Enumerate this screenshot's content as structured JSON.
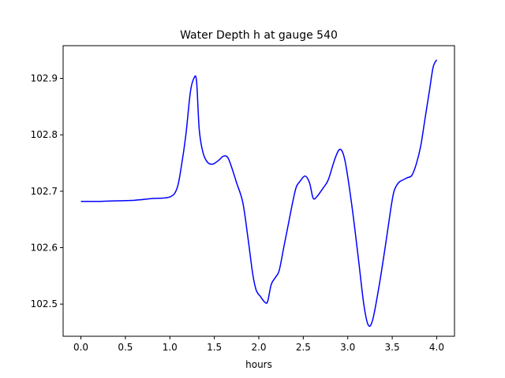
{
  "chart_data": {
    "type": "line",
    "title": "Water Depth h at gauge 540",
    "xlabel": "hours",
    "ylabel": "",
    "xlim": [
      -0.2,
      4.2
    ],
    "ylim": [
      102.443,
      102.958
    ],
    "grid": false,
    "xticks": [
      0.0,
      0.5,
      1.0,
      1.5,
      2.0,
      2.5,
      3.0,
      3.5,
      4.0
    ],
    "xtick_labels": [
      "0.0",
      "0.5",
      "1.0",
      "1.5",
      "2.0",
      "2.5",
      "3.0",
      "3.5",
      "4.0"
    ],
    "yticks": [
      102.5,
      102.6,
      102.7,
      102.8,
      102.9
    ],
    "ytick_labels": [
      "102.5",
      "102.6",
      "102.7",
      "102.8",
      "102.9"
    ],
    "colors": {
      "line": "#0000ff",
      "axes": "#000000",
      "background": "#ffffff"
    },
    "series": [
      {
        "name": "h",
        "x": [
          0.0,
          0.2,
          0.4,
          0.6,
          0.8,
          1.0,
          1.08,
          1.13,
          1.18,
          1.23,
          1.27,
          1.3,
          1.33,
          1.37,
          1.42,
          1.48,
          1.55,
          1.6,
          1.65,
          1.7,
          1.75,
          1.82,
          1.88,
          1.93,
          1.97,
          2.02,
          2.07,
          2.1,
          2.14,
          2.19,
          2.23,
          2.28,
          2.33,
          2.38,
          2.42,
          2.46,
          2.52,
          2.57,
          2.61,
          2.65,
          2.72,
          2.78,
          2.85,
          2.9,
          2.94,
          2.98,
          3.05,
          3.12,
          3.18,
          3.23,
          3.28,
          3.35,
          3.42,
          3.48,
          3.52,
          3.57,
          3.62,
          3.67,
          3.72,
          3.77,
          3.82,
          3.87,
          3.92,
          3.96,
          4.0
        ],
        "y": [
          102.682,
          102.682,
          102.683,
          102.684,
          102.687,
          102.69,
          102.705,
          102.745,
          102.8,
          102.875,
          102.9,
          102.895,
          102.81,
          102.77,
          102.752,
          102.748,
          102.755,
          102.762,
          102.76,
          102.74,
          102.715,
          102.68,
          102.615,
          102.555,
          102.525,
          102.513,
          102.503,
          102.505,
          102.535,
          102.548,
          102.56,
          102.6,
          102.64,
          102.68,
          102.707,
          102.717,
          102.727,
          102.715,
          102.688,
          102.69,
          102.705,
          102.72,
          102.755,
          102.773,
          102.77,
          102.745,
          102.67,
          102.58,
          102.5,
          102.463,
          102.472,
          102.53,
          102.6,
          102.665,
          102.7,
          102.715,
          102.72,
          102.724,
          102.728,
          102.748,
          102.78,
          102.83,
          102.88,
          102.92,
          102.933
        ]
      }
    ]
  }
}
